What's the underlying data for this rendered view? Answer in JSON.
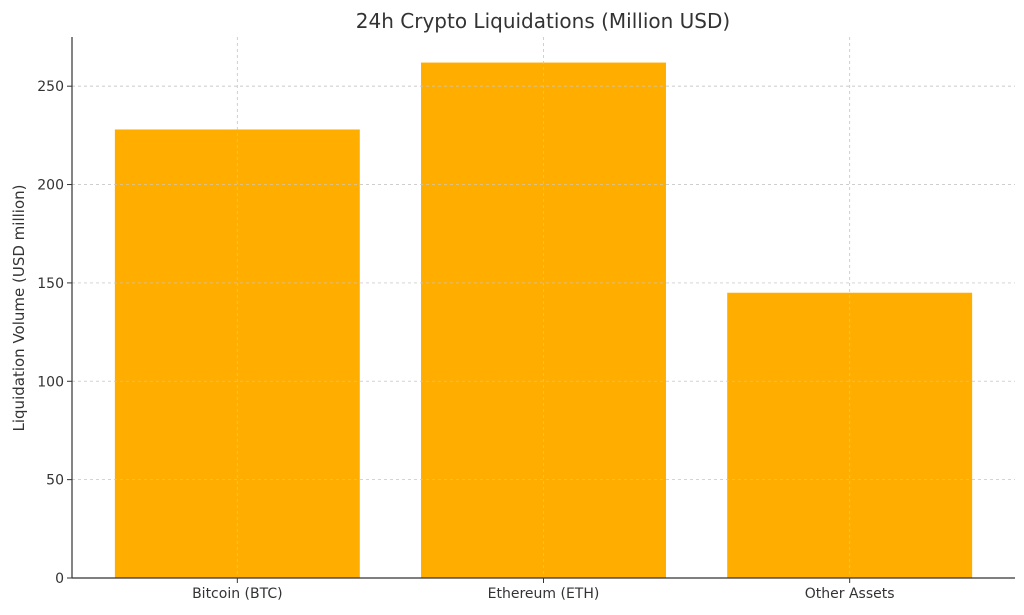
{
  "chart_data": {
    "type": "bar",
    "title": "24h Crypto Liquidations (Million USD)",
    "xlabel": "",
    "ylabel": "Liquidation Volume (USD million)",
    "categories": [
      "Bitcoin (BTC)",
      "Ethereum (ETH)",
      "Other Assets"
    ],
    "values": [
      228,
      262,
      145
    ],
    "ylim": [
      0,
      275
    ],
    "yticks": [
      0,
      50,
      100,
      150,
      200,
      250
    ],
    "grid": true,
    "bar_color": "#FFAE00",
    "grid_color": "#cccccc",
    "axis_color": "#333333"
  }
}
